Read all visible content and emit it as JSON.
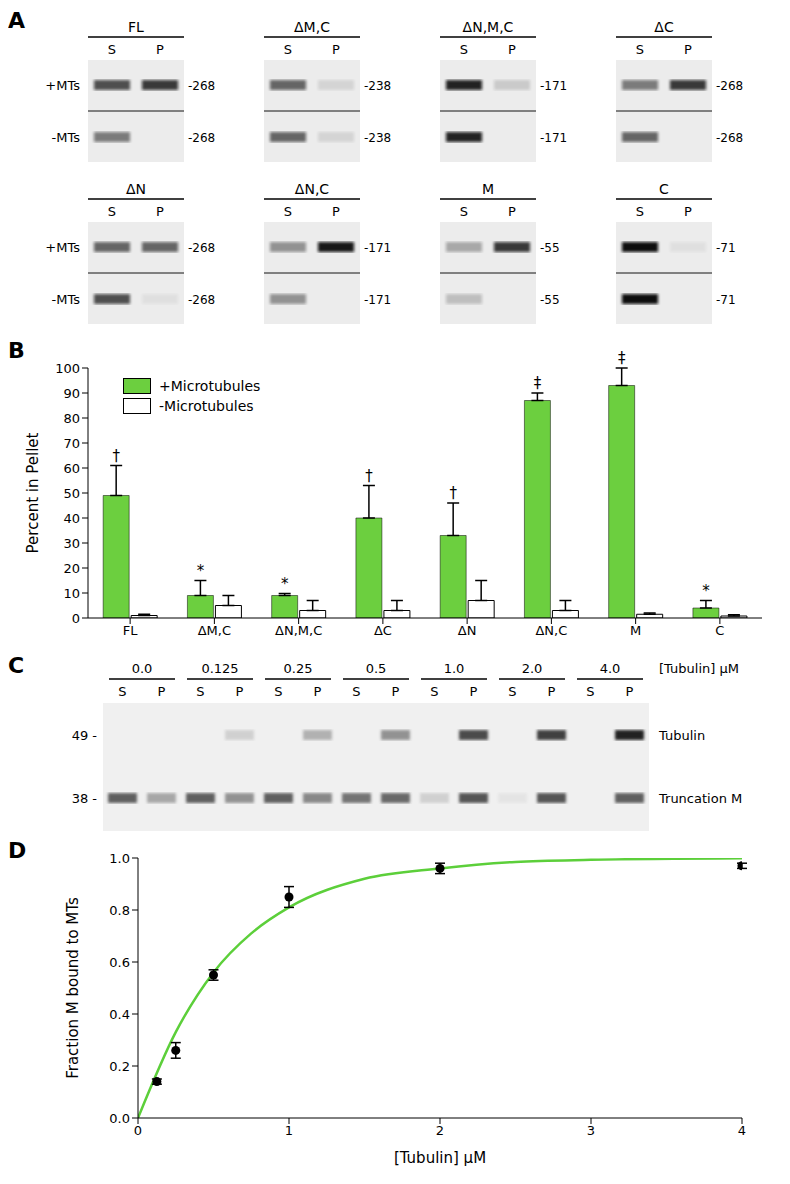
{
  "chart_data": [
    {
      "type": "blot",
      "panel": "A",
      "lane_labels": [
        "S",
        "P"
      ],
      "row_labels": [
        "+MTs",
        "-MTs"
      ],
      "blots": [
        {
          "name": "FL",
          "mw_label": "-268",
          "plus": [
            0.7,
            0.8
          ],
          "minus": [
            0.5,
            0
          ]
        },
        {
          "name": "ΔM,C",
          "mw_label": "-238",
          "plus": [
            0.6,
            0.1
          ],
          "minus": [
            0.6,
            0.1
          ]
        },
        {
          "name": "ΔN,M,C",
          "mw_label": "-171",
          "plus": [
            0.9,
            0.15
          ],
          "minus": [
            0.9,
            0
          ]
        },
        {
          "name": "ΔC",
          "mw_label": "-268",
          "plus": [
            0.5,
            0.8
          ],
          "minus": [
            0.6,
            0
          ]
        },
        {
          "name": "ΔN",
          "mw_label": "-268",
          "plus": [
            0.6,
            0.6
          ],
          "minus": [
            0.7,
            0.05
          ]
        },
        {
          "name": "ΔN,C",
          "mw_label": "-171",
          "plus": [
            0.4,
            0.95
          ],
          "minus": [
            0.4,
            0
          ]
        },
        {
          "name": "M",
          "mw_label": "-55",
          "plus": [
            0.3,
            0.8
          ],
          "minus": [
            0.2,
            0
          ]
        },
        {
          "name": "C",
          "mw_label": "-71",
          "plus": [
            1,
            0.05
          ],
          "minus": [
            1,
            0
          ]
        }
      ]
    },
    {
      "type": "bar",
      "panel": "B",
      "categories": [
        "FL",
        "ΔM,C",
        "ΔN,M,C",
        "ΔC",
        "ΔN",
        "ΔN,C",
        "M",
        "C"
      ],
      "series": [
        {
          "name": "+Microtubules",
          "color": "#6ccf3f",
          "values": [
            49,
            9,
            9,
            40,
            33,
            87,
            93,
            4
          ],
          "errors": [
            12,
            6,
            0.8,
            13,
            13,
            3,
            7,
            3
          ],
          "annotations": [
            "†",
            "*",
            "*",
            "†",
            "†",
            "‡",
            "‡",
            "*"
          ]
        },
        {
          "name": "-Microtubules",
          "color": "#ffffff",
          "values": [
            1,
            5,
            3,
            3,
            7,
            3,
            1.5,
            0.8
          ],
          "errors": [
            0.5,
            4,
            4,
            4,
            8,
            4,
            0.5,
            0.5
          ]
        }
      ],
      "y_label": "Percent in Pellet",
      "ylim": [
        0,
        100
      ],
      "yticks": [
        0,
        10,
        20,
        30,
        40,
        50,
        60,
        70,
        80,
        90,
        100
      ],
      "grid": false,
      "legend": "upper left"
    },
    {
      "type": "gel",
      "panel": "C",
      "concentrations": [
        "0.0",
        "0.125",
        "0.25",
        "0.5",
        "1.0",
        "2.0",
        "4.0"
      ],
      "concentration_label": "[Tubulin] μM",
      "lane_labels": [
        "S",
        "P"
      ],
      "bands": [
        {
          "name": "Tubulin",
          "mw_label": "49 -",
          "S": [
            0,
            0,
            0,
            0,
            0,
            0,
            0
          ],
          "P": [
            0,
            0.15,
            0.3,
            0.45,
            0.8,
            0.85,
            1
          ]
        },
        {
          "name": "Truncation M",
          "mw_label": "38 -",
          "S": [
            0.7,
            0.7,
            0.7,
            0.6,
            0.15,
            0.05,
            0
          ],
          "P": [
            0.35,
            0.45,
            0.5,
            0.65,
            0.75,
            0.75,
            0.7
          ]
        }
      ]
    },
    {
      "type": "line",
      "panel": "D",
      "x_label": "[Tubulin] μM",
      "y_label": "Fraction M bound to MTs",
      "xlim": [
        0,
        4
      ],
      "xticks": [
        0,
        1,
        2,
        3,
        4
      ],
      "ylim": [
        0,
        1
      ],
      "yticks": [
        {
          "value": 0,
          "label": "0.0"
        },
        {
          "value": 0.2,
          "label": "0.2"
        },
        {
          "value": 0.4,
          "label": "0.4"
        },
        {
          "value": 0.6,
          "label": "0.6"
        },
        {
          "value": 0.8,
          "label": "0.8"
        },
        {
          "value": 1,
          "label": "1.0"
        }
      ],
      "grid": false,
      "series": [
        {
          "type": "scatter",
          "color": "#000000",
          "marker": "circle",
          "x": [
            0.125,
            0.25,
            0.5,
            1,
            2,
            4
          ],
          "values": [
            0.14,
            0.26,
            0.55,
            0.85,
            0.96,
            0.97
          ],
          "errors": [
            0.01,
            0.03,
            0.02,
            0.04,
            0.02,
            0.01
          ]
        },
        {
          "type": "line",
          "color": "#5ccf3a",
          "line_style": "solid",
          "x": [
            0,
            0.25,
            0.5,
            0.75,
            1,
            1.5,
            2,
            2.5,
            3,
            4
          ],
          "values": [
            0,
            0.33,
            0.56,
            0.71,
            0.81,
            0.92,
            0.96,
            0.985,
            0.993,
            0.999
          ]
        }
      ]
    }
  ]
}
